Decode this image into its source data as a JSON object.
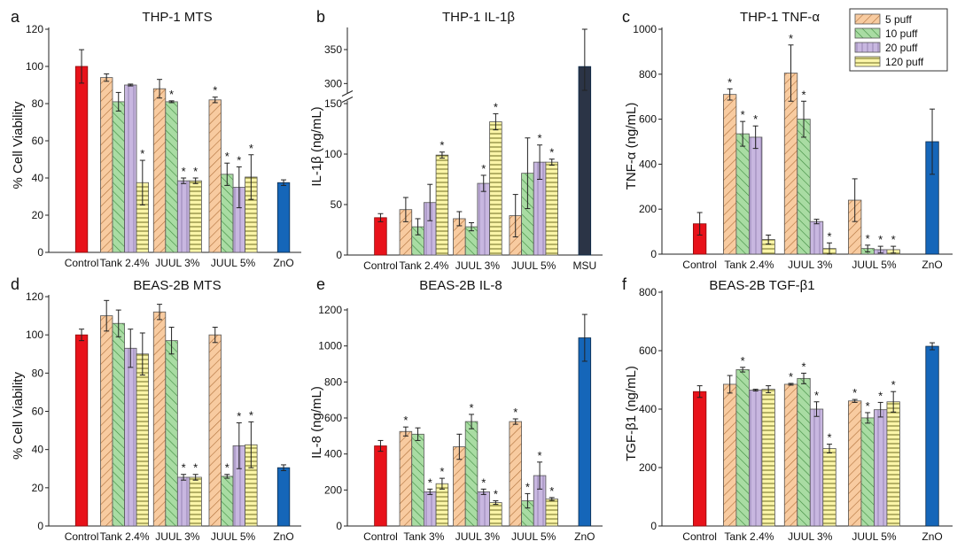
{
  "colors": {
    "control": "#e8121a",
    "znO": "#1566b9",
    "msu": "#2b3446",
    "p5": "#f8cba0",
    "p10": "#a9dca3",
    "p20": "#c8b7e0",
    "p120": "#fbf5a8",
    "error": "#222222"
  },
  "legend": {
    "placement": "top-right of panel c",
    "entries": [
      "5 puff",
      "10 puff",
      "20 puff",
      "120 puff"
    ]
  },
  "chart_data": [
    {
      "panel": "a",
      "type": "bar",
      "title": "THP-1 MTS",
      "ylabel": "% Cell Viability",
      "ylim": [
        0,
        120
      ],
      "yticks": [
        "0",
        "20",
        "40",
        "60",
        "80",
        "100",
        "120"
      ],
      "categories": [
        "Control",
        "Tank 2.4%",
        "JUUL 3%",
        "JUUL 5%",
        "ZnO"
      ],
      "controls": [
        {
          "name": "Control",
          "value": 100,
          "err": 9
        }
      ],
      "groups": [
        {
          "category": "Tank 2.4%",
          "values": [
            94,
            81,
            90,
            37.5
          ],
          "errs": [
            2,
            5,
            0.5,
            12
          ],
          "stars": [
            "",
            "",
            "",
            "*"
          ]
        },
        {
          "category": "JUUL 3%",
          "values": [
            88,
            81,
            38.5,
            38.5
          ],
          "errs": [
            5,
            0.5,
            1.5,
            1.5
          ],
          "stars": [
            "",
            "*",
            "*",
            "*"
          ]
        },
        {
          "category": "JUUL 5%",
          "values": [
            82,
            42,
            35,
            40.5
          ],
          "errs": [
            1.5,
            6,
            11,
            12
          ],
          "stars": [
            "*",
            "*",
            "*",
            "*"
          ]
        }
      ],
      "trailing": [
        {
          "name": "ZnO",
          "value": 37.5,
          "err": 1.5
        }
      ]
    },
    {
      "panel": "b",
      "type": "bar",
      "title": "THP-1 IL-1β",
      "ylabel": "IL-1β (ng/mL)",
      "axis_break": true,
      "lower_ylim": [
        0,
        150
      ],
      "upper_ylim": [
        290,
        380
      ],
      "yticks": [
        "0",
        "50",
        "100",
        "150",
        "300",
        "350"
      ],
      "categories": [
        "Control",
        "Tank 2.4%",
        "JUUL 3%",
        "JUUL 5%",
        "MSU"
      ],
      "controls": [
        {
          "name": "Control",
          "value": 37,
          "err": 4
        }
      ],
      "groups": [
        {
          "category": "Tank 2.4%",
          "values": [
            45,
            28,
            52,
            99
          ],
          "errs": [
            12,
            8,
            18,
            3
          ],
          "stars": [
            "",
            "",
            "",
            "*"
          ]
        },
        {
          "category": "JUUL 3%",
          "values": [
            36,
            28,
            71,
            132
          ],
          "errs": [
            7,
            4,
            8,
            8
          ],
          "stars": [
            "",
            "",
            "*",
            "*"
          ]
        },
        {
          "category": "JUUL 5%",
          "values": [
            39,
            81,
            92,
            92
          ],
          "errs": [
            21,
            35,
            17,
            3
          ],
          "stars": [
            "",
            "",
            "*",
            "*"
          ]
        }
      ],
      "trailing": [
        {
          "name": "MSU",
          "value": 325,
          "err": 55
        }
      ]
    },
    {
      "panel": "c",
      "type": "bar",
      "title": "THP-1 TNF-α",
      "ylabel": "TNF-α (ng/mL)",
      "ylim": [
        0,
        1000
      ],
      "yticks": [
        "0",
        "200",
        "400",
        "600",
        "800",
        "1000"
      ],
      "categories": [
        "Control",
        "Tank 2.4%",
        "JUUL 3%",
        "JUUL 5%",
        "ZnO"
      ],
      "controls": [
        {
          "name": "Control",
          "value": 135,
          "err": 50
        }
      ],
      "groups": [
        {
          "category": "Tank 2.4%",
          "values": [
            710,
            535,
            520,
            65
          ],
          "errs": [
            25,
            55,
            50,
            20
          ],
          "stars": [
            "*",
            "*",
            "*",
            ""
          ]
        },
        {
          "category": "JUUL 3%",
          "values": [
            805,
            600,
            145,
            25
          ],
          "errs": [
            125,
            80,
            10,
            25
          ],
          "stars": [
            "*",
            "*",
            "",
            "*"
          ]
        },
        {
          "category": "JUUL 5%",
          "values": [
            240,
            25,
            20,
            20
          ],
          "errs": [
            95,
            15,
            15,
            15
          ],
          "stars": [
            "",
            "*",
            "*",
            "*"
          ]
        }
      ],
      "trailing": [
        {
          "name": "ZnO",
          "value": 500,
          "err": 145
        }
      ]
    },
    {
      "panel": "d",
      "type": "bar",
      "title": "BEAS-2B MTS",
      "ylabel": "% Cell Viability",
      "ylim": [
        0,
        120
      ],
      "yticks": [
        "0",
        "20",
        "40",
        "60",
        "80",
        "100",
        "120"
      ],
      "categories": [
        "Control",
        "Tank 2.4%",
        "JUUL 3%",
        "JUUL 5%",
        "ZnO"
      ],
      "controls": [
        {
          "name": "Control",
          "value": 100,
          "err": 3
        }
      ],
      "groups": [
        {
          "category": "Tank 2.4%",
          "values": [
            110,
            106,
            93,
            90
          ],
          "errs": [
            8,
            7,
            10,
            11
          ],
          "stars": [
            "",
            "",
            "",
            ""
          ]
        },
        {
          "category": "JUUL 3%",
          "values": [
            112,
            97,
            25.5,
            25.5
          ],
          "errs": [
            4,
            7,
            1.5,
            1.5
          ],
          "stars": [
            "",
            "",
            "*",
            "*"
          ]
        },
        {
          "category": "JUUL 5%",
          "values": [
            100,
            26,
            42,
            42.5
          ],
          "errs": [
            4,
            1,
            12,
            12
          ],
          "stars": [
            "",
            "*",
            "*",
            "*"
          ]
        }
      ],
      "trailing": [
        {
          "name": "ZnO",
          "value": 30.5,
          "err": 1.5
        }
      ]
    },
    {
      "panel": "e",
      "type": "bar",
      "title": "BEAS-2B IL-8",
      "ylabel": "IL-8 (ng/mL)",
      "ylim": [
        0,
        1200
      ],
      "yticks": [
        "0",
        "200",
        "400",
        "600",
        "800",
        "1000",
        "1200"
      ],
      "categories": [
        "Control",
        "Tank 3%",
        "JUUL 3%",
        "JUUL 5%",
        "ZnO"
      ],
      "controls": [
        {
          "name": "Control",
          "value": 445,
          "err": 30
        }
      ],
      "groups": [
        {
          "category": "Tank 3%",
          "values": [
            525,
            510,
            190,
            235
          ],
          "errs": [
            25,
            35,
            15,
            30
          ],
          "stars": [
            "*",
            "",
            "*",
            "*"
          ]
        },
        {
          "category": "JUUL 3%",
          "values": [
            440,
            580,
            190,
            130
          ],
          "errs": [
            70,
            40,
            15,
            10
          ],
          "stars": [
            "",
            "*",
            "*",
            "*"
          ]
        },
        {
          "category": "JUUL 5%",
          "values": [
            580,
            140,
            280,
            150
          ],
          "errs": [
            15,
            40,
            75,
            8
          ],
          "stars": [
            "*",
            "*",
            "*",
            "*"
          ]
        }
      ],
      "trailing": [
        {
          "name": "ZnO",
          "value": 1045,
          "err": 130
        }
      ]
    },
    {
      "panel": "f",
      "type": "bar",
      "title": "BEAS-2B TGF-β1",
      "ylabel": "TGF-β1 (ng/mL)",
      "ylim": [
        0,
        800
      ],
      "yticks": [
        "0",
        "200",
        "400",
        "600",
        "800"
      ],
      "categories": [
        "Control",
        "Tank 2.4%",
        "JUUL 3%",
        "JUUL 5%",
        "ZnO"
      ],
      "controls": [
        {
          "name": "Control",
          "value": 460,
          "err": 20
        }
      ],
      "groups": [
        {
          "category": "Tank 2.4%",
          "values": [
            485,
            535,
            465,
            468
          ],
          "errs": [
            30,
            8,
            3,
            12
          ],
          "stars": [
            "",
            "*",
            "",
            ""
          ]
        },
        {
          "category": "JUUL 3%",
          "values": [
            485,
            505,
            400,
            265
          ],
          "errs": [
            3,
            18,
            25,
            15
          ],
          "stars": [
            "*",
            "*",
            "*",
            "*"
          ]
        },
        {
          "category": "JUUL 5%",
          "values": [
            428,
            370,
            398,
            425
          ],
          "errs": [
            5,
            18,
            25,
            35
          ],
          "stars": [
            "*",
            "*",
            "*",
            "*"
          ]
        }
      ],
      "trailing": [
        {
          "name": "ZnO",
          "value": 615,
          "err": 12
        }
      ]
    }
  ]
}
